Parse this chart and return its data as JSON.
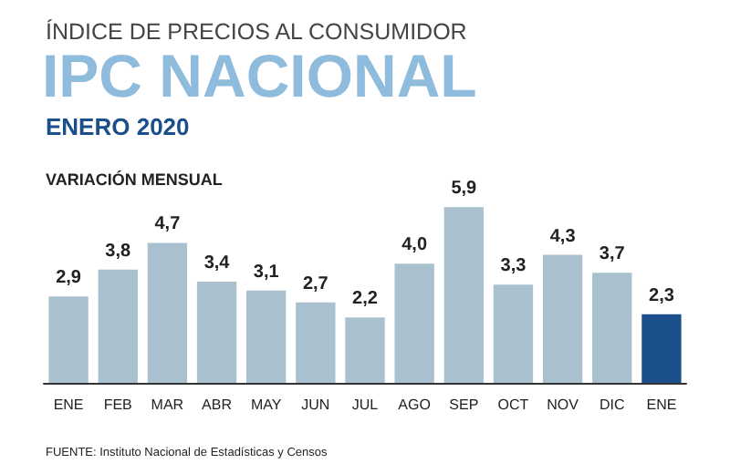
{
  "chart_data": {
    "type": "bar",
    "title": "IPC NACIONAL",
    "subtitle": "ÍNDICE DE PRECIOS AL CONSUMIDOR",
    "ylabel": "VARIACIÓN MENSUAL",
    "annotations": [
      "ENERO 2020",
      "FUENTE: Instituto Nacional de Estadísticas y Censos"
    ],
    "categories": [
      "ENE",
      "FEB",
      "MAR",
      "ABR",
      "MAY",
      "JUN",
      "JUL",
      "AGO",
      "SEP",
      "OCT",
      "NOV",
      "DIC",
      "ENE"
    ],
    "values": [
      2.9,
      3.8,
      4.7,
      3.4,
      3.1,
      2.7,
      2.2,
      4.0,
      5.9,
      3.3,
      4.3,
      3.7,
      2.3
    ],
    "value_labels": [
      "2,9",
      "3,8",
      "4,7",
      "3,4",
      "3,1",
      "2,7",
      "2,2",
      "4,0",
      "5,9",
      "3,3",
      "4,3",
      "3,7",
      "2,3"
    ],
    "colors": [
      "#a9c0cf",
      "#a9c0cf",
      "#a9c0cf",
      "#a9c0cf",
      "#a9c0cf",
      "#a9c0cf",
      "#a9c0cf",
      "#a9c0cf",
      "#a9c0cf",
      "#a9c0cf",
      "#a9c0cf",
      "#a9c0cf",
      "#1b4f8c"
    ],
    "grid": false
  }
}
